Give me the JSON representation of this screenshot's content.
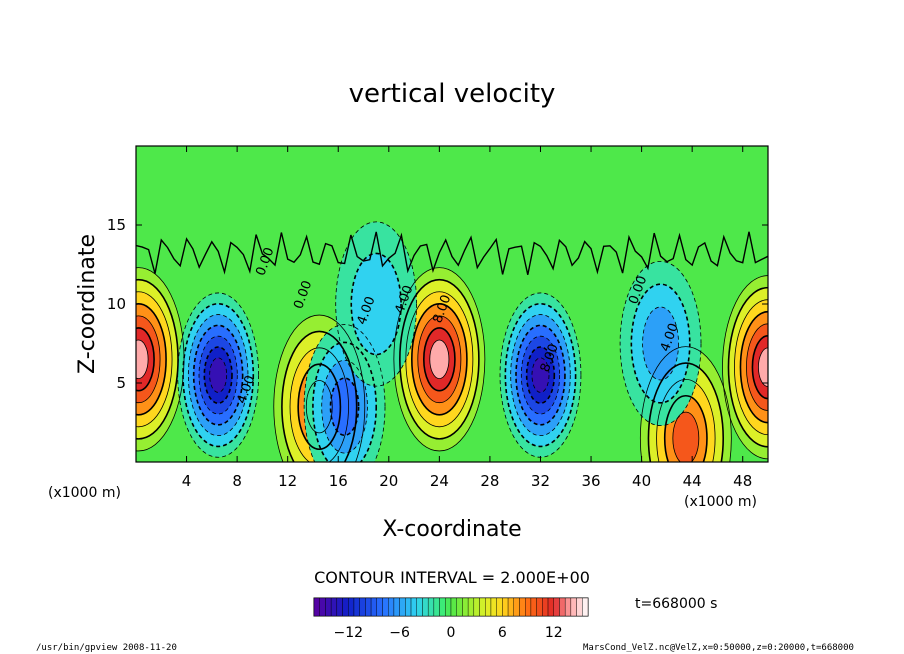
{
  "chart_data": {
    "type": "heatmap",
    "title": "vertical velocity",
    "xlabel": "X-coordinate",
    "ylabel": "Z-coordinate",
    "x_unit": "(x1000 m)",
    "y_unit": "(x1000 m)",
    "xlim": [
      0,
      50
    ],
    "ylim": [
      0,
      20
    ],
    "xticks": [
      "4",
      "8",
      "12",
      "16",
      "20",
      "24",
      "28",
      "32",
      "36",
      "40",
      "44",
      "48"
    ],
    "yticks": [
      "5",
      "10",
      "15"
    ],
    "contour_interval_label": "CONTOUR INTERVAL = 2.000E+00",
    "contour_labels": [
      "0.00",
      "4.00",
      "8.00",
      "-4.00"
    ],
    "colorbar": {
      "min": -16,
      "max": 16,
      "ticks": [
        "-12",
        "-6",
        "0",
        "6",
        "12"
      ]
    },
    "time_label": "t=668000 s",
    "features": [
      {
        "x": 24,
        "z": 6.5,
        "value": 14,
        "kind": "updraft"
      },
      {
        "x": 50,
        "z": 6,
        "value": 14,
        "kind": "updraft"
      },
      {
        "x": 0.2,
        "z": 6.5,
        "value": 14,
        "kind": "updraft"
      },
      {
        "x": 14.5,
        "z": 3.5,
        "value": 10,
        "kind": "updraft"
      },
      {
        "x": 43.5,
        "z": 1.5,
        "value": 10,
        "kind": "updraft"
      },
      {
        "x": 6.5,
        "z": 5.5,
        "value": -13,
        "kind": "downdraft"
      },
      {
        "x": 32,
        "z": 5.5,
        "value": -13,
        "kind": "downdraft"
      },
      {
        "x": 41.5,
        "z": 7.5,
        "value": -6,
        "kind": "downdraft"
      },
      {
        "x": 16.5,
        "z": 3.5,
        "value": -8,
        "kind": "downdraft"
      },
      {
        "x": 19,
        "z": 10,
        "value": -4,
        "kind": "downdraft"
      }
    ]
  },
  "footer": {
    "left": "/usr/bin/gpview   2008-11-20",
    "right": "MarsCond_VelZ.nc@VelZ,x=0:50000,z=0:20000,t=668000"
  }
}
